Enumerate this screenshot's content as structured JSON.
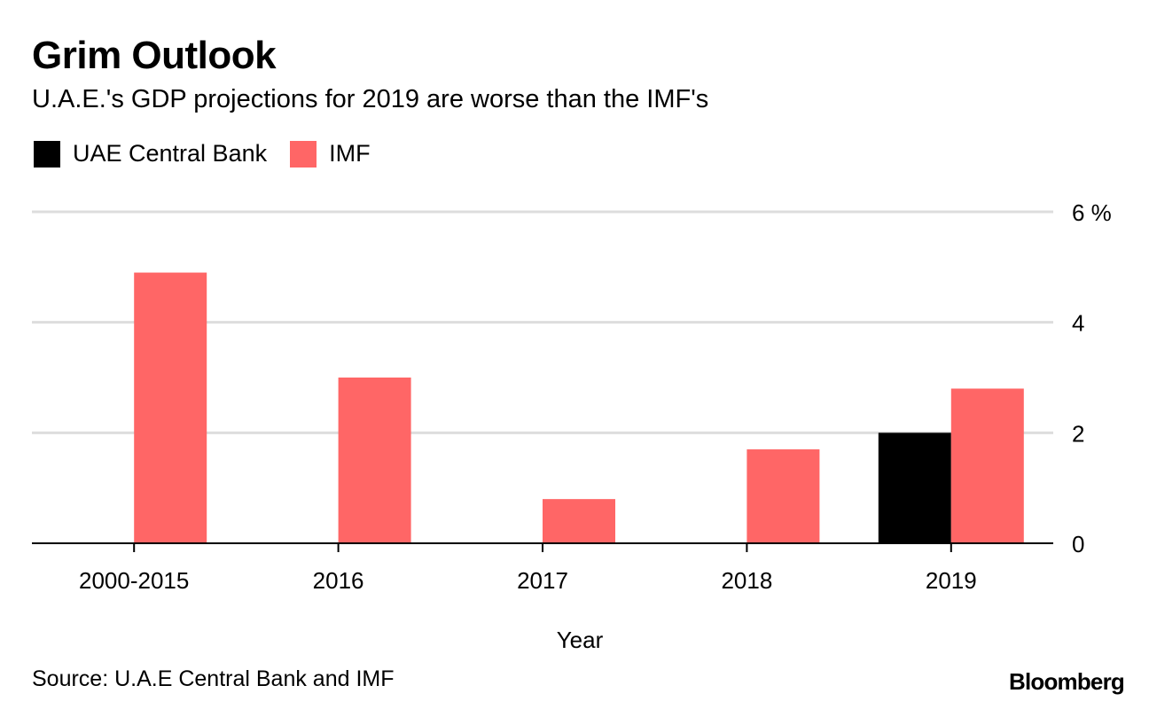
{
  "chart_data": {
    "type": "bar",
    "title": "Grim Outlook",
    "subtitle": "U.A.E.'s GDP projections for 2019 are worse than the IMF's",
    "categories": [
      "2000-2015",
      "2016",
      "2017",
      "2018",
      "2019"
    ],
    "series": [
      {
        "name": "UAE Central Bank",
        "color": "#000000",
        "values": [
          null,
          null,
          null,
          null,
          2.0
        ]
      },
      {
        "name": "IMF",
        "color": "#ff6666",
        "values": [
          4.9,
          3.0,
          0.8,
          1.7,
          2.8
        ]
      }
    ],
    "xlabel": "Year",
    "ylabel": "",
    "ylim": [
      0,
      6
    ],
    "yticks": [
      0,
      2,
      4,
      6
    ],
    "ytick_labels": [
      "0",
      "2",
      "4",
      "6 %"
    ],
    "grid": true,
    "legend_position": "top-left"
  },
  "footer": {
    "source": "Source: U.A.E Central Bank and IMF",
    "brand": "Bloomberg"
  }
}
